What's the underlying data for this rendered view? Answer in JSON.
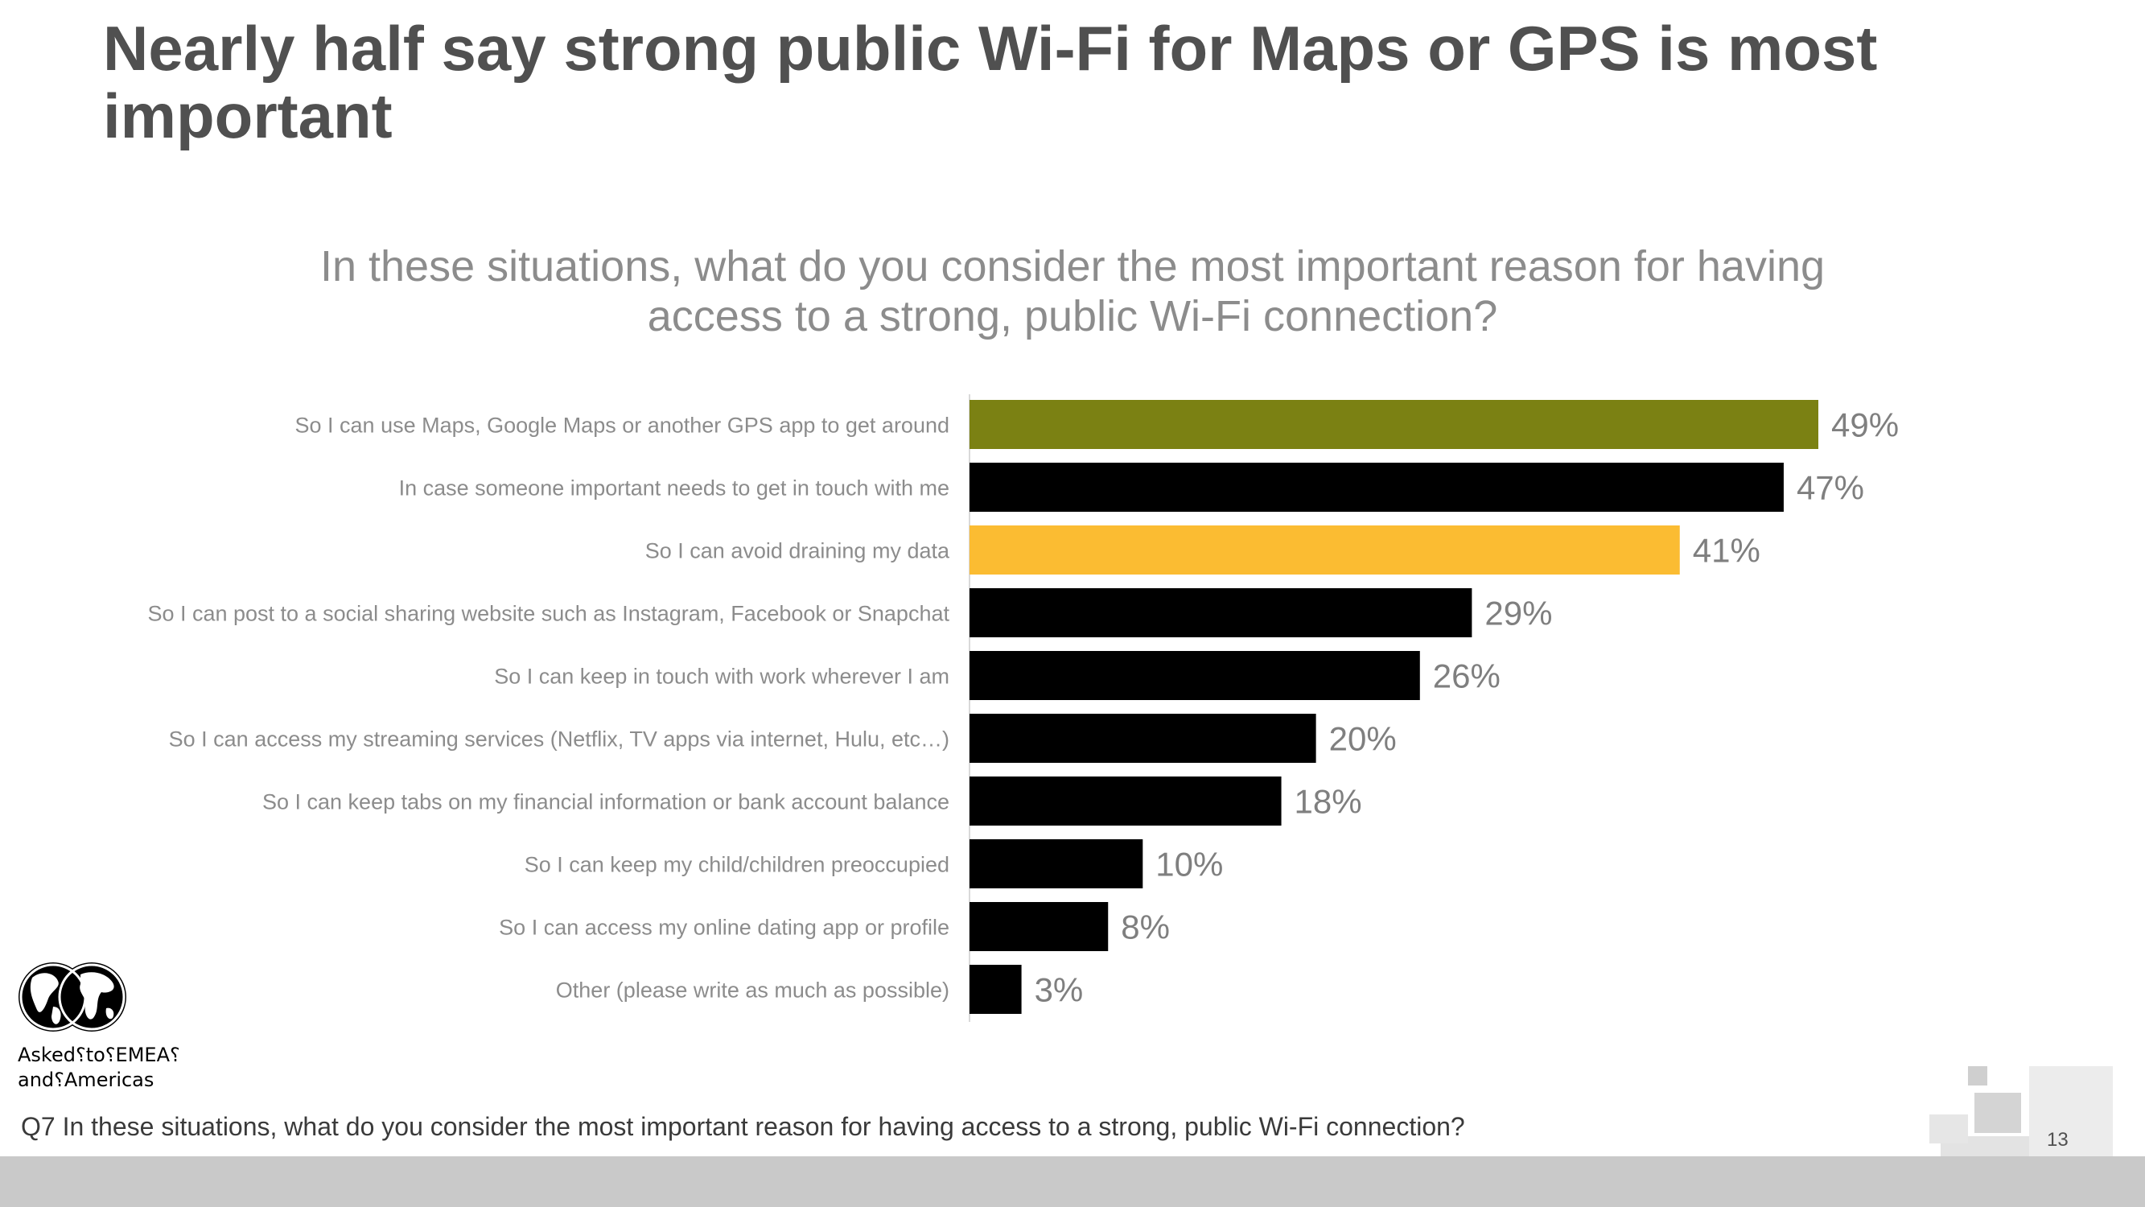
{
  "title": "Nearly half say strong public Wi-Fi for Maps or GPS is most important",
  "subtitle": "In these situations, what do you consider the most important reason for having access to a strong, public Wi-Fi connection?",
  "region_note": [
    "Asked⸮to⸮EMEA⸮",
    "and⸮Americas"
  ],
  "footnote": "Q7 In these situations, what do you consider the most important reason for having access to a strong, public Wi-Fi connection?",
  "page_number": "13",
  "colors": {
    "default_bar": "#000000",
    "highlight_1": "#7b8113",
    "highlight_2": "#fbbc32",
    "label": "#8c8c8c",
    "value": "#7f7f7f"
  },
  "chart_data": {
    "type": "bar",
    "orientation": "horizontal",
    "title": "In these situations, what do you consider the most important reason for having access to a strong, public Wi-Fi connection?",
    "xlabel": "",
    "ylabel": "",
    "xlim": [
      0,
      50
    ],
    "grid": false,
    "value_suffix": "%",
    "categories": [
      "So I can use Maps, Google Maps or another GPS app to get around",
      "In case someone important needs to get in touch with me",
      "So I can avoid draining my data",
      "So I can post to a social sharing website such as Instagram, Facebook or Snapchat",
      "So I can keep in touch with work wherever I am",
      "So I can access my streaming services (Netflix, TV apps via internet, Hulu, etc…)",
      "So I can keep tabs on my financial information or bank account balance",
      "So I can keep my child/children preoccupied",
      "So I can access my online dating app or profile",
      "Other (please write as much as possible)"
    ],
    "values": [
      49,
      47,
      41,
      29,
      26,
      20,
      18,
      10,
      8,
      3
    ],
    "bar_colors": [
      "#7b8113",
      "#000000",
      "#fbbc32",
      "#000000",
      "#000000",
      "#000000",
      "#000000",
      "#000000",
      "#000000",
      "#000000"
    ]
  }
}
